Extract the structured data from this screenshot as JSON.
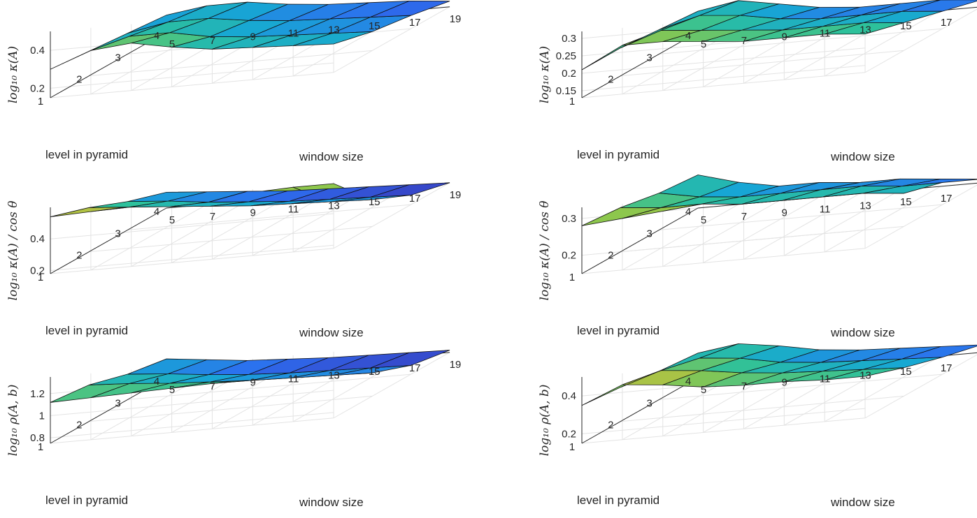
{
  "chart_data": [
    {
      "type": "surface",
      "zlabel": "log₁₀ κ(A)",
      "xlabel": "window size",
      "ylabel": "level in pyramid",
      "x_ticks": [
        5,
        7,
        9,
        11,
        13,
        15,
        17,
        19
      ],
      "y_ticks": [
        1,
        2,
        3,
        4
      ],
      "z_ticks": [
        0.2,
        0.4
      ],
      "zlim": [
        0.15,
        0.5
      ],
      "grid": true,
      "colormap": [
        "#3e26a8",
        "#2d6ef0",
        "#17a7d4",
        "#2dc19b",
        "#91c74a",
        "#f9b838",
        "#f9fb0e"
      ],
      "z": [
        [
          0.3,
          0.38,
          0.4,
          0.36,
          0.33,
          0.32,
          0.31,
          0.3
        ],
        [
          0.28,
          0.34,
          0.34,
          0.3,
          0.28,
          0.27,
          0.26,
          0.25
        ],
        [
          0.26,
          0.3,
          0.3,
          0.27,
          0.25,
          0.24,
          0.23,
          0.22
        ],
        [
          0.24,
          0.27,
          0.27,
          0.24,
          0.22,
          0.21,
          0.2,
          0.18
        ]
      ]
    },
    {
      "type": "surface",
      "zlabel": "log₁₀ κ(A)",
      "xlabel": "window size",
      "ylabel": "level in pyramid",
      "x_ticks": [
        5,
        7,
        9,
        11,
        13,
        15,
        17,
        19
      ],
      "y_ticks": [
        1,
        2,
        3,
        4
      ],
      "z_ticks": [
        0.15,
        0.2,
        0.25,
        0.3
      ],
      "zlim": [
        0.13,
        0.32
      ],
      "grid": true,
      "colormap": [
        "#3e26a8",
        "#2d6ef0",
        "#17a7d4",
        "#2dc19b",
        "#91c74a",
        "#f9b838",
        "#f9fb0e"
      ],
      "z": [
        [
          0.21,
          0.27,
          0.27,
          0.26,
          0.25,
          0.25,
          0.25,
          0.24
        ],
        [
          0.21,
          0.25,
          0.24,
          0.23,
          0.22,
          0.22,
          0.22,
          0.21
        ],
        [
          0.2,
          0.23,
          0.22,
          0.2,
          0.19,
          0.19,
          0.19,
          0.18
        ],
        [
          0.19,
          0.21,
          0.19,
          0.17,
          0.16,
          0.16,
          0.16,
          0.15
        ]
      ]
    },
    {
      "type": "surface",
      "zlabel": "log₁₀ κ(A) / cos θ",
      "xlabel": "window size",
      "ylabel": "level in pyramid",
      "x_ticks": [
        5,
        7,
        9,
        11,
        13,
        15,
        17,
        19
      ],
      "y_ticks": [
        1,
        2,
        3,
        4
      ],
      "z_ticks": [
        0.2,
        0.4
      ],
      "zlim": [
        0.18,
        0.6
      ],
      "grid": true,
      "colormap": [
        "#3e26a8",
        "#2d6ef0",
        "#17a7d4",
        "#2dc19b",
        "#91c74a",
        "#f9b838",
        "#f9fb0e"
      ],
      "z": [
        [
          0.54,
          0.55,
          0.56,
          0.57,
          0.58,
          0.58,
          0.59,
          0.59
        ],
        [
          0.46,
          0.44,
          0.42,
          0.4,
          0.38,
          0.37,
          0.36,
          0.35
        ],
        [
          0.36,
          0.34,
          0.31,
          0.29,
          0.27,
          0.26,
          0.25,
          0.24
        ],
        [
          0.28,
          0.26,
          0.24,
          0.22,
          0.21,
          0.2,
          0.19,
          0.18
        ]
      ]
    },
    {
      "type": "surface",
      "zlabel": "log₁₀ κ(A) / cos θ",
      "xlabel": "window size",
      "ylabel": "level in pyramid",
      "x_ticks": [
        5,
        7,
        9,
        11,
        13,
        15,
        17,
        19
      ],
      "y_ticks": [
        1,
        2,
        3,
        4
      ],
      "z_ticks": [
        0.2,
        0.3
      ],
      "zlim": [
        0.15,
        0.33
      ],
      "grid": true,
      "colormap": [
        "#3e26a8",
        "#2d6ef0",
        "#17a7d4",
        "#2dc19b",
        "#91c74a",
        "#f9b838",
        "#f9fb0e"
      ],
      "z": [
        [
          0.28,
          0.29,
          0.3,
          0.31,
          0.32,
          0.32,
          0.33,
          0.33
        ],
        [
          0.27,
          0.26,
          0.26,
          0.25,
          0.25,
          0.25,
          0.25,
          0.24
        ],
        [
          0.25,
          0.23,
          0.22,
          0.22,
          0.22,
          0.22,
          0.21,
          0.21
        ],
        [
          0.24,
          0.21,
          0.19,
          0.19,
          0.18,
          0.18,
          0.17,
          0.16
        ]
      ]
    },
    {
      "type": "surface",
      "zlabel": "log₁₀ ρ(A, b)",
      "xlabel": "window size",
      "ylabel": "level in pyramid",
      "x_ticks": [
        5,
        7,
        9,
        11,
        13,
        15,
        17,
        19
      ],
      "y_ticks": [
        1,
        2,
        3,
        4
      ],
      "z_ticks": [
        0.8,
        1,
        1.2
      ],
      "zlim": [
        0.75,
        1.35
      ],
      "grid": true,
      "colormap": [
        "#3e26a8",
        "#2d6ef0",
        "#17a7d4",
        "#2dc19b",
        "#91c74a",
        "#f9b838",
        "#f9fb0e"
      ],
      "z": [
        [
          1.12,
          1.13,
          1.14,
          1.15,
          1.16,
          1.17,
          1.18,
          1.18
        ],
        [
          1.08,
          1.06,
          1.03,
          1.01,
          0.99,
          0.98,
          0.97,
          0.96
        ],
        [
          0.98,
          0.95,
          0.91,
          0.88,
          0.86,
          0.85,
          0.84,
          0.83
        ],
        [
          0.92,
          0.88,
          0.84,
          0.82,
          0.8,
          0.79,
          0.78,
          0.77
        ]
      ]
    },
    {
      "type": "surface",
      "zlabel": "log₁₀ ρ(A, b)",
      "xlabel": "window size",
      "ylabel": "level in pyramid",
      "x_ticks": [
        5,
        7,
        9,
        11,
        13,
        15,
        17,
        19
      ],
      "y_ticks": [
        1,
        2,
        3,
        4
      ],
      "z_ticks": [
        0.2,
        0.4
      ],
      "zlim": [
        0.15,
        0.5
      ],
      "grid": true,
      "colormap": [
        "#3e26a8",
        "#2d6ef0",
        "#17a7d4",
        "#2dc19b",
        "#91c74a",
        "#f9b838",
        "#f9fb0e"
      ],
      "z": [
        [
          0.35,
          0.44,
          0.42,
          0.39,
          0.38,
          0.38,
          0.37,
          0.37
        ],
        [
          0.33,
          0.4,
          0.38,
          0.35,
          0.33,
          0.32,
          0.31,
          0.3
        ],
        [
          0.3,
          0.35,
          0.33,
          0.29,
          0.27,
          0.26,
          0.25,
          0.24
        ],
        [
          0.28,
          0.31,
          0.28,
          0.24,
          0.22,
          0.21,
          0.2,
          0.19
        ]
      ]
    }
  ]
}
